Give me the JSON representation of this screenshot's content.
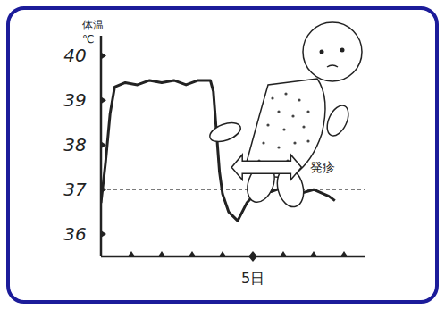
{
  "chart_data": {
    "type": "line",
    "ylabel": "体温",
    "yunit": "℃",
    "x": [
      0.0,
      0.15,
      0.3,
      0.45,
      0.8,
      1.2,
      1.6,
      2.0,
      2.4,
      2.8,
      3.2,
      3.6,
      3.7,
      3.8,
      3.9,
      4.0,
      4.2,
      4.5,
      4.8,
      5.2,
      5.6,
      6.0,
      6.5,
      7.0,
      7.5,
      7.7
    ],
    "values": [
      36.7,
      37.6,
      38.7,
      39.3,
      39.4,
      39.35,
      39.45,
      39.4,
      39.45,
      39.35,
      39.45,
      39.45,
      39.2,
      38.3,
      37.4,
      36.9,
      36.5,
      36.3,
      36.7,
      37.0,
      36.95,
      37.05,
      36.9,
      37.0,
      36.85,
      36.75
    ],
    "color": "#222222",
    "xlim": [
      0,
      8.7
    ],
    "ylim": [
      35.5,
      40.45
    ],
    "xticks": [
      {
        "value": 5,
        "label": "5日"
      }
    ],
    "minor_xticks": [
      1,
      2,
      3,
      4,
      6,
      7,
      8
    ],
    "yticks": [
      36,
      37,
      38,
      39,
      40
    ],
    "reference_line": 37,
    "rash": {
      "label": "発疹",
      "start": 4.3,
      "end": 6.6
    },
    "grid": false
  }
}
